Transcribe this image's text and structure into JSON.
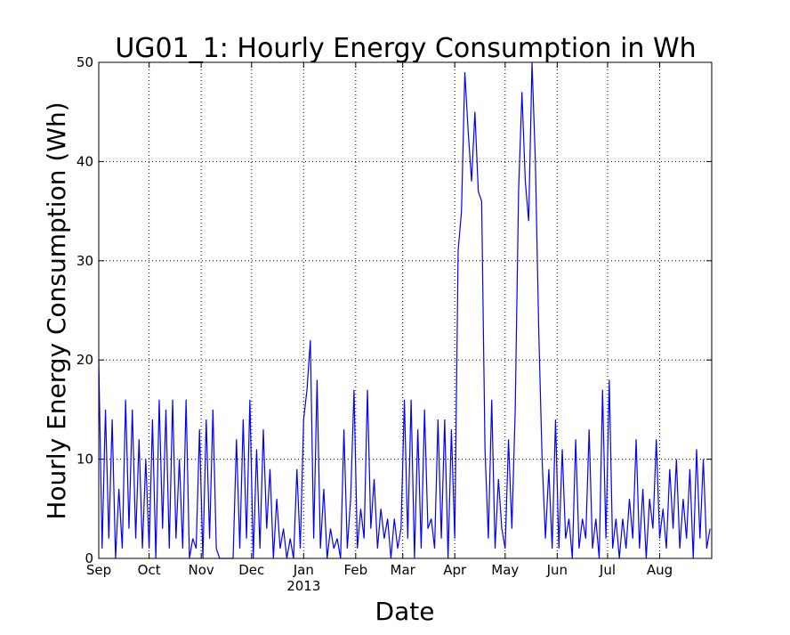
{
  "chart_data": {
    "type": "line",
    "title": "UG01_1: Hourly Energy Consumption in Wh",
    "x_label": "Date",
    "y_label": "Hourly Energy Consumption (Wh)",
    "year_label": "2013",
    "x": [
      0,
      2,
      4,
      6,
      8,
      10,
      12,
      14,
      16,
      18,
      20,
      22,
      24,
      26,
      28,
      30,
      32,
      34,
      36,
      38,
      40,
      42,
      44,
      46,
      48,
      50,
      52,
      54,
      56,
      58,
      60,
      62,
      64,
      66,
      68,
      70,
      72,
      74,
      76,
      78,
      80,
      82,
      84,
      86,
      88,
      90,
      92,
      94,
      96,
      98,
      100,
      102,
      104,
      106,
      108,
      110,
      112,
      114,
      116,
      118,
      120,
      122,
      124,
      126,
      128,
      130,
      132,
      134,
      136,
      138,
      140,
      142,
      144,
      146,
      148,
      150,
      152,
      154,
      156,
      158,
      160,
      162,
      164,
      166,
      168,
      170,
      172,
      174,
      176,
      178,
      180,
      182,
      184,
      186,
      188,
      190,
      192,
      194,
      196,
      198,
      200,
      202,
      204,
      206,
      208,
      210,
      212,
      214,
      216,
      218,
      220,
      222,
      224,
      226,
      228,
      230,
      232,
      234,
      236,
      238,
      240,
      242,
      244,
      246,
      248,
      250,
      252,
      254,
      256,
      258,
      260,
      262,
      264,
      266,
      268,
      270,
      272,
      274,
      276,
      278,
      280,
      282,
      284,
      286,
      288,
      290,
      292,
      294,
      296,
      298,
      300,
      302,
      304,
      306,
      308,
      310,
      312,
      314,
      316,
      318,
      320,
      322,
      324,
      326,
      328,
      330,
      332,
      334,
      336,
      338,
      340,
      342,
      344,
      346,
      348,
      350,
      352,
      354,
      356,
      358,
      360,
      362,
      364
    ],
    "series": [
      {
        "name": "UG01_1",
        "color": "#0000ff",
        "values": [
          20,
          1,
          15,
          2,
          14,
          0,
          7,
          1,
          16,
          3,
          15,
          2,
          12,
          1,
          10,
          1,
          14,
          0,
          16,
          3,
          15,
          1,
          16,
          2,
          10,
          1,
          16,
          0,
          2,
          1,
          13,
          0,
          14,
          2,
          15,
          1,
          0,
          0,
          0,
          0,
          0,
          12,
          1,
          14,
          2,
          16,
          0,
          11,
          1,
          13,
          3,
          9,
          0,
          6,
          1,
          3,
          0,
          2,
          0,
          9,
          1,
          14,
          17,
          22,
          2,
          18,
          1,
          7,
          0,
          3,
          1,
          2,
          0,
          13,
          1,
          6,
          17,
          1,
          5,
          2,
          17,
          3,
          8,
          1,
          5,
          2,
          4,
          0,
          4,
          1,
          3,
          16,
          2,
          16,
          0,
          13,
          1,
          15,
          3,
          4,
          1,
          14,
          2,
          14,
          0,
          13,
          2,
          31,
          35,
          49,
          43,
          38,
          45,
          37,
          36,
          11,
          2,
          16,
          1,
          8,
          3,
          1,
          12,
          3,
          15,
          37,
          47,
          38,
          34,
          50,
          40,
          23,
          10,
          2,
          9,
          1,
          14,
          1,
          11,
          2,
          4,
          0,
          12,
          1,
          4,
          2,
          13,
          1,
          4,
          0,
          17,
          2,
          18,
          1,
          4,
          0,
          4,
          1,
          6,
          2,
          12,
          1,
          7,
          0,
          6,
          3,
          12,
          2,
          5,
          1,
          9,
          3,
          10,
          1,
          6,
          2,
          9,
          0,
          11,
          2,
          10,
          1,
          3
        ]
      }
    ],
    "xlim": [
      0,
      365
    ],
    "xticks": [
      {
        "value": 0,
        "label": "Sep"
      },
      {
        "value": 30,
        "label": "Oct"
      },
      {
        "value": 61,
        "label": "Nov"
      },
      {
        "value": 91,
        "label": "Dec"
      },
      {
        "value": 122,
        "label": "Jan"
      },
      {
        "value": 153,
        "label": "Feb"
      },
      {
        "value": 181,
        "label": "Mar"
      },
      {
        "value": 212,
        "label": "Apr"
      },
      {
        "value": 242,
        "label": "May"
      },
      {
        "value": 273,
        "label": "Jun"
      },
      {
        "value": 303,
        "label": "Jul"
      },
      {
        "value": 334,
        "label": "Aug"
      }
    ],
    "ylim": [
      0,
      50
    ],
    "yticks": [
      0,
      10,
      20,
      30,
      40,
      50
    ],
    "grid": true
  }
}
